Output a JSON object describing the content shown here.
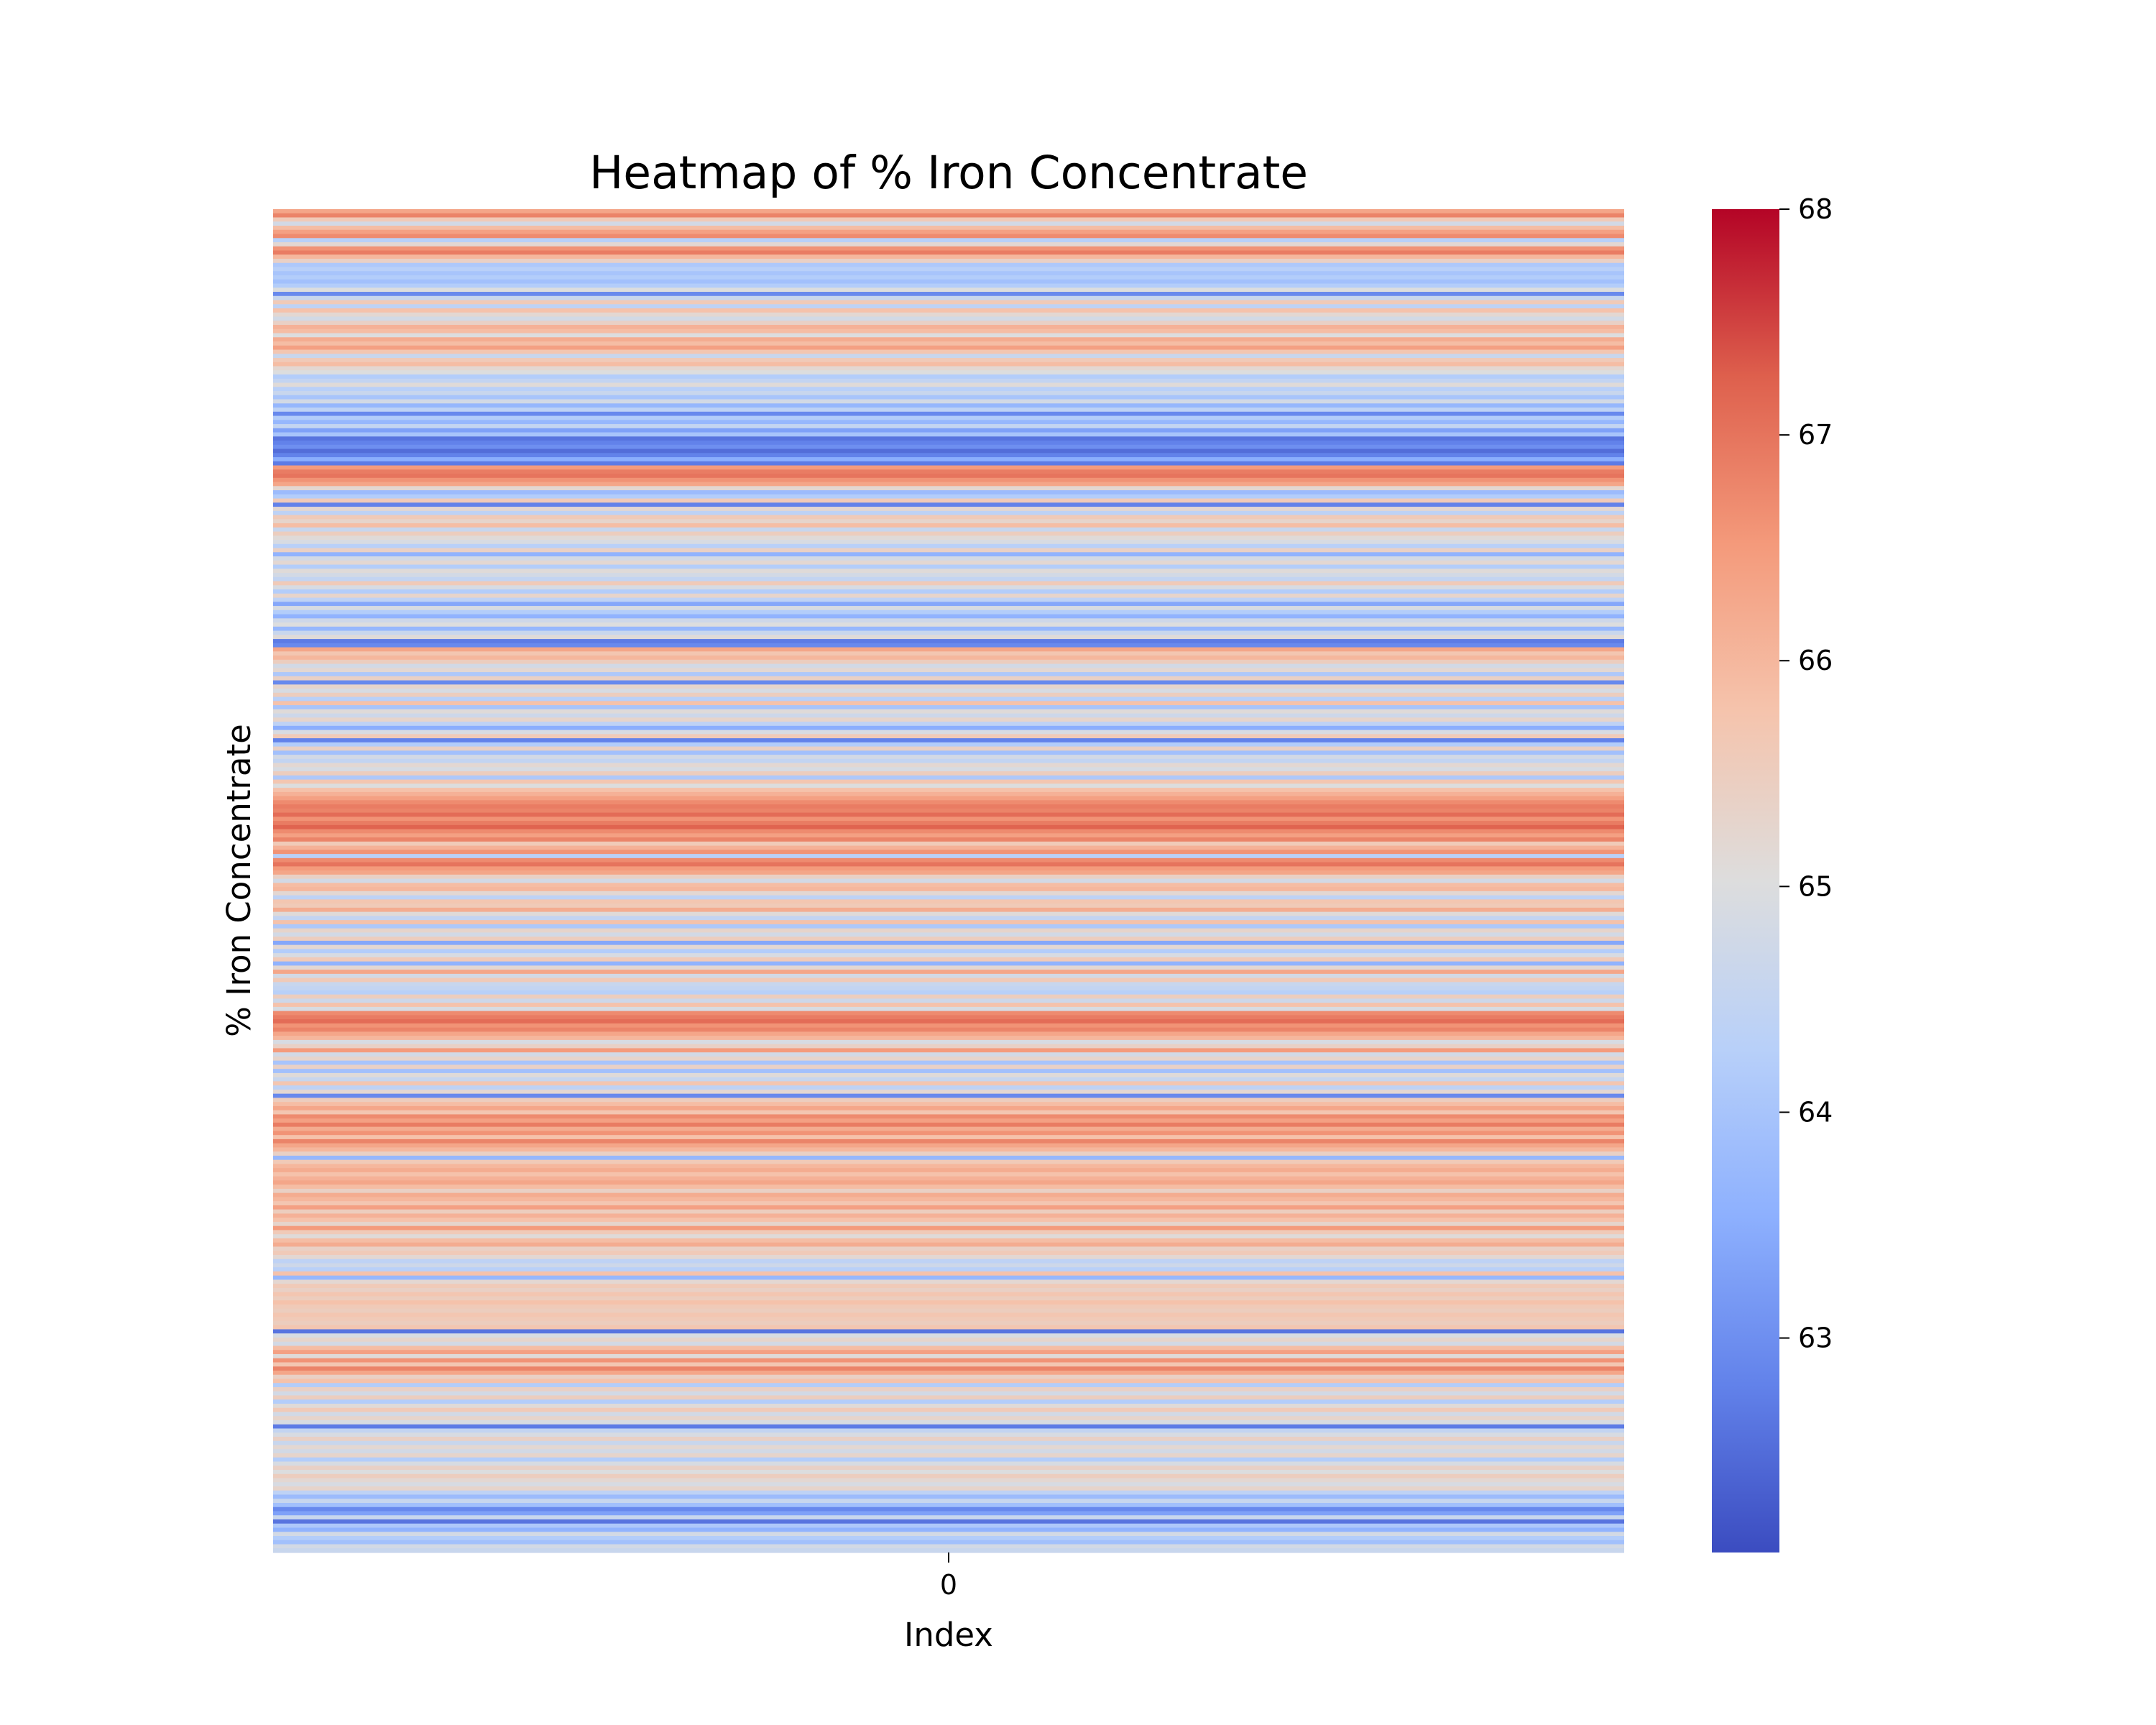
{
  "chart_data": {
    "type": "heatmap",
    "title": "Heatmap of % Iron Concentrate",
    "xlabel": "Index",
    "ylabel": "% Iron Concentrate",
    "x_tick_labels": [
      "0"
    ],
    "colormap": "coolwarm",
    "colorbar": {
      "vmin": 62.05,
      "vmax": 68.0,
      "ticks": [
        63,
        64,
        65,
        66,
        67,
        68
      ],
      "tick_labels": [
        "63",
        "64",
        "65",
        "66",
        "67",
        "68"
      ]
    },
    "rows_top_to_bottom": [
      66.3,
      66.8,
      65.6,
      64.8,
      65.9,
      66.4,
      66.7,
      64.3,
      65.2,
      66.6,
      66.9,
      66.0,
      65.4,
      64.1,
      64.3,
      64.0,
      64.2,
      63.9,
      64.2,
      65.0,
      62.9,
      64.6,
      65.6,
      64.4,
      65.8,
      65.2,
      64.8,
      65.4,
      66.1,
      65.9,
      65.0,
      66.2,
      65.9,
      66.4,
      65.7,
      64.6,
      65.6,
      65.9,
      65.2,
      65.0,
      64.2,
      64.5,
      65.1,
      64.3,
      64.6,
      64.0,
      64.8,
      63.7,
      64.4,
      62.9,
      64.2,
      63.7,
      64.5,
      63.3,
      64.0,
      62.6,
      62.8,
      63.0,
      62.5,
      62.8,
      63.5,
      62.7,
      66.5,
      66.9,
      67.0,
      66.6,
      66.3,
      65.2,
      63.8,
      64.2,
      65.6,
      62.8,
      65.2,
      64.4,
      65.6,
      65.3,
      65.9,
      64.6,
      65.5,
      65.1,
      64.9,
      64.3,
      65.4,
      63.6,
      64.8,
      65.2,
      64.2,
      65.1,
      64.8,
      64.5,
      65.6,
      64.9,
      64.2,
      65.3,
      64.4,
      63.4,
      64.9,
      64.2,
      63.6,
      64.7,
      65.0,
      63.7,
      64.6,
      65.1,
      62.7,
      62.9,
      66.3,
      65.7,
      66.0,
      65.5,
      64.8,
      65.2,
      64.1,
      65.4,
      62.9,
      65.3,
      64.9,
      65.5,
      64.3,
      65.8,
      64.0,
      65.1,
      64.7,
      65.3,
      64.4,
      63.5,
      64.9,
      65.6,
      62.8,
      64.2,
      65.4,
      63.9,
      64.8,
      64.5,
      65.2,
      64.9,
      65.5,
      64.1,
      65.7,
      65.0,
      65.8,
      66.1,
      66.4,
      66.7,
      66.9,
      66.8,
      67.1,
      66.6,
      66.9,
      67.2,
      66.7,
      66.4,
      66.8,
      65.6,
      66.1,
      66.6,
      64.3,
      66.7,
      67.0,
      66.5,
      66.3,
      65.4,
      64.8,
      65.9,
      66.0,
      65.2,
      64.4,
      65.7,
      65.6,
      66.2,
      65.1,
      64.5,
      65.8,
      64.1,
      65.3,
      64.8,
      65.5,
      63.4,
      65.2,
      64.2,
      64.9,
      65.6,
      63.6,
      65.2,
      66.3,
      64.8,
      65.6,
      64.6,
      64.5,
      64.3,
      65.5,
      64.7,
      65.8,
      64.9,
      66.7,
      66.9,
      67.1,
      66.6,
      66.8,
      66.3,
      66.0,
      64.9,
      65.4,
      66.5,
      64.8,
      65.3,
      64.0,
      65.4,
      63.9,
      65.1,
      64.6,
      65.7,
      64.4,
      65.2,
      62.9,
      65.5,
      65.9,
      66.3,
      65.7,
      66.7,
      66.4,
      66.9,
      66.2,
      66.6,
      65.8,
      66.8,
      66.3,
      66.0,
      65.4,
      63.7,
      65.6,
      66.0,
      66.2,
      65.8,
      66.1,
      66.3,
      65.9,
      65.4,
      66.2,
      66.0,
      65.7,
      66.4,
      65.5,
      66.1,
      65.8,
      65.3,
      66.5,
      65.6,
      65.1,
      65.9,
      66.2,
      65.4,
      65.6,
      65.2,
      64.4,
      64.7,
      64.3,
      65.8,
      63.7,
      65.2,
      65.6,
      65.4,
      65.7,
      65.5,
      65.8,
      65.6,
      65.5,
      65.7,
      65.6,
      65.5,
      65.7,
      62.6,
      64.9,
      65.3,
      64.8,
      65.9,
      66.4,
      65.1,
      66.6,
      65.7,
      66.8,
      66.3,
      65.4,
      65.8,
      64.2,
      65.4,
      64.8,
      65.5,
      64.2,
      65.1,
      65.6,
      64.8,
      65.3,
      64.9,
      62.7,
      64.5,
      64.9,
      65.4,
      64.6,
      65.2,
      64.8,
      65.3,
      64.2,
      64.9,
      65.4,
      65.0,
      65.5,
      65.2,
      64.9,
      65.3,
      64.4,
      63.8,
      64.6,
      63.9,
      62.9,
      63.3,
      64.6,
      62.6,
      64.1,
      63.6,
      64.8,
      64.2,
      63.9,
      64.8,
      64.6
    ]
  }
}
